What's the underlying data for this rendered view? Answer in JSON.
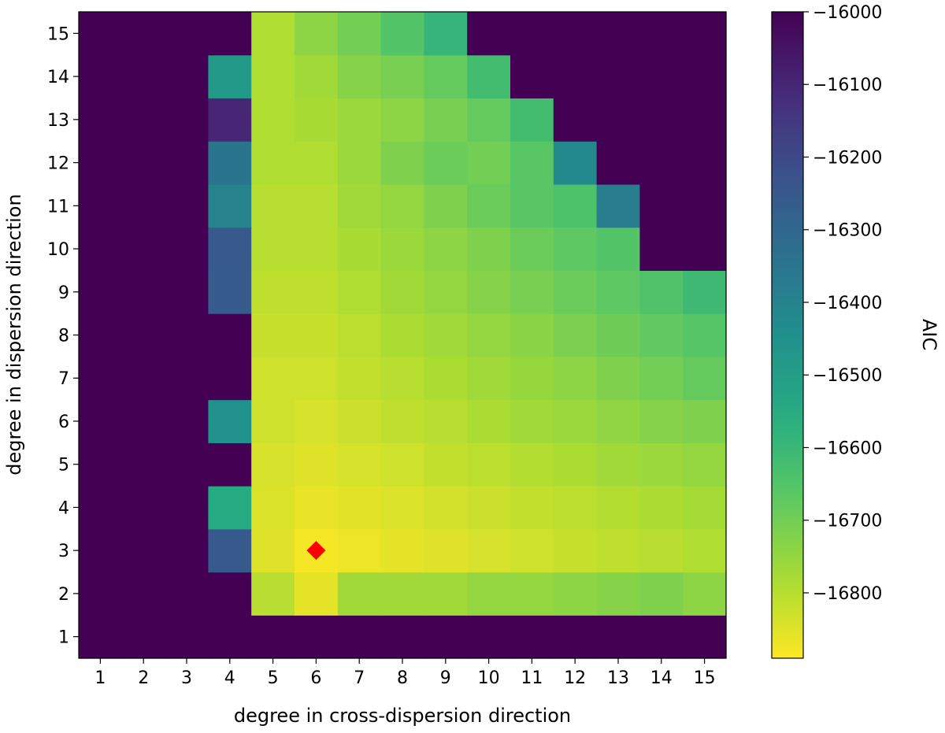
{
  "chart_data": {
    "type": "heatmap",
    "title": "",
    "xlabel": "degree in cross-dispersion direction",
    "ylabel": "degree in dispersion direction",
    "x": [
      1,
      2,
      3,
      4,
      5,
      6,
      7,
      8,
      9,
      10,
      11,
      12,
      13,
      14,
      15
    ],
    "y": [
      1,
      2,
      3,
      4,
      5,
      6,
      7,
      8,
      9,
      10,
      11,
      12,
      13,
      14,
      15
    ],
    "colorbar": {
      "label": "AIC",
      "range": [
        -16890,
        -16000
      ],
      "ticks": [
        -16000,
        -16100,
        -16200,
        -16300,
        -16400,
        -16500,
        -16600,
        -16700,
        -16800
      ],
      "tick_labels": [
        "−16000",
        "−16100",
        "−16200",
        "−16300",
        "−16400",
        "−16500",
        "−16600",
        "−16700",
        "−16800"
      ],
      "colormap": "viridis_r"
    },
    "values": [
      [
        null,
        null,
        null,
        null,
        null,
        null,
        null,
        null,
        null,
        null,
        null,
        null,
        null,
        null,
        null
      ],
      [
        null,
        null,
        null,
        null,
        -16800,
        -16860,
        -16770,
        -16770,
        -16770,
        -16750,
        -16750,
        -16740,
        -16730,
        -16720,
        -16740
      ],
      [
        null,
        null,
        null,
        -16250,
        -16850,
        -16880,
        -16870,
        -16860,
        -16850,
        -16840,
        -16830,
        -16820,
        -16810,
        -16800,
        -16790
      ],
      [
        null,
        null,
        null,
        -16550,
        -16845,
        -16865,
        -16855,
        -16845,
        -16835,
        -16825,
        -16815,
        -16805,
        -16795,
        -16785,
        -16775
      ],
      [
        null,
        null,
        null,
        null,
        -16840,
        -16850,
        -16840,
        -16830,
        -16815,
        -16805,
        -16795,
        -16785,
        -16770,
        -16760,
        -16750
      ],
      [
        null,
        null,
        null,
        -16450,
        -16830,
        -16840,
        -16825,
        -16810,
        -16800,
        -16785,
        -16770,
        -16760,
        -16745,
        -16730,
        -16720
      ],
      [
        null,
        null,
        null,
        null,
        -16830,
        -16830,
        -16815,
        -16800,
        -16785,
        -16770,
        -16755,
        -16740,
        -16720,
        -16700,
        -16680
      ],
      [
        null,
        null,
        null,
        null,
        -16820,
        -16820,
        -16805,
        -16785,
        -16770,
        -16750,
        -16735,
        -16715,
        -16695,
        -16675,
        -16655
      ],
      [
        null,
        null,
        null,
        -16260,
        -16810,
        -16810,
        -16790,
        -16770,
        -16750,
        -16730,
        -16710,
        -16690,
        -16670,
        -16645,
        -16610
      ],
      [
        null,
        null,
        null,
        -16250,
        -16800,
        -16800,
        -16780,
        -16760,
        -16740,
        -16720,
        -16690,
        -16670,
        -16650,
        null,
        null
      ],
      [
        null,
        null,
        null,
        -16400,
        -16800,
        -16800,
        -16770,
        -16750,
        -16720,
        -16690,
        -16660,
        -16640,
        -16380,
        null,
        null
      ],
      [
        null,
        null,
        null,
        -16350,
        -16790,
        -16790,
        -16760,
        -16720,
        -16690,
        -16700,
        -16660,
        -16420,
        null,
        null,
        null
      ],
      [
        null,
        null,
        null,
        -16100,
        -16790,
        -16780,
        -16760,
        -16740,
        -16710,
        -16680,
        -16620,
        null,
        null,
        null,
        null
      ],
      [
        null,
        null,
        null,
        -16480,
        -16790,
        -16770,
        -16730,
        -16710,
        -16680,
        -16620,
        null,
        null,
        null,
        null,
        null
      ],
      [
        null,
        null,
        null,
        null,
        -16790,
        -16740,
        -16700,
        -16650,
        -16590,
        null,
        null,
        null,
        null,
        null,
        null
      ]
    ],
    "missing_color": "#440154",
    "marker": {
      "x": 6,
      "y": 3,
      "shape": "diamond",
      "color": "#ff0000"
    }
  }
}
